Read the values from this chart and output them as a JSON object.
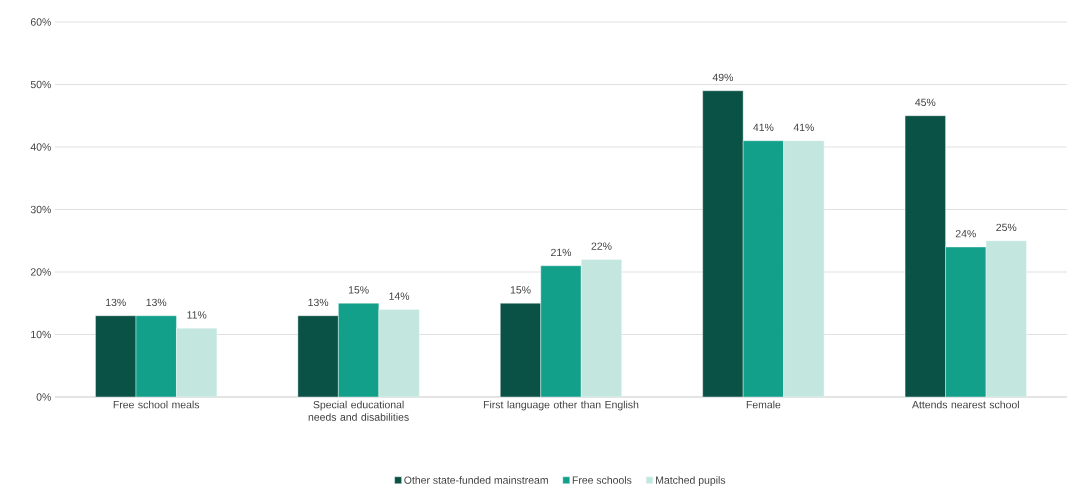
{
  "chart_data": {
    "type": "bar",
    "categories": [
      "Free school meals",
      "Special educational needs and disabilities",
      "First language other than English",
      "Female",
      "Attends nearest school"
    ],
    "series": [
      {
        "name": "Other state-funded mainstream",
        "color": "#0a5246",
        "values": [
          13,
          13,
          15,
          49,
          45
        ],
        "value_labels": [
          "13%",
          "13%",
          "15%",
          "49%",
          "45%"
        ]
      },
      {
        "name": "Free schools",
        "color": "#13a08b",
        "values": [
          13,
          15,
          21,
          41,
          24
        ],
        "value_labels": [
          "13%",
          "15%",
          "21%",
          "41%",
          "24%"
        ]
      },
      {
        "name": "Matched pupils",
        "color": "#c3e6df",
        "values": [
          11,
          14,
          22,
          41,
          25
        ],
        "value_labels": [
          "11%",
          "14%",
          "22%",
          "41%",
          "25%"
        ]
      }
    ],
    "ylim": [
      0,
      60
    ],
    "yticks": [
      {
        "value": 0,
        "label": "0%"
      },
      {
        "value": 10,
        "label": "10%"
      },
      {
        "value": 20,
        "label": "20%"
      },
      {
        "value": 30,
        "label": "30%"
      },
      {
        "value": 40,
        "label": "40%"
      },
      {
        "value": 50,
        "label": "50%"
      },
      {
        "value": 60,
        "label": "60%"
      }
    ],
    "grid": "y",
    "legend": "bottom"
  }
}
